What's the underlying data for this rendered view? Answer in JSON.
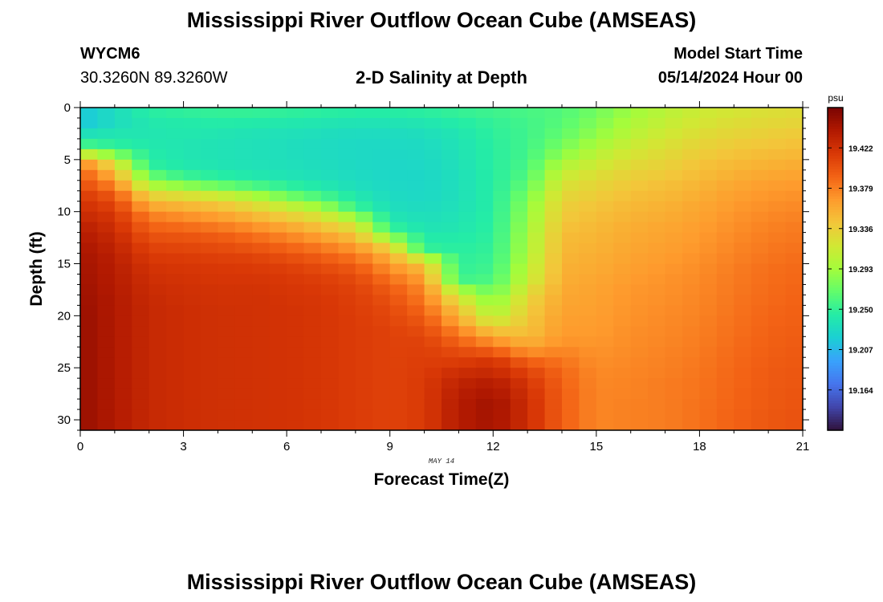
{
  "header": {
    "title": "Mississippi River Outflow Ocean Cube (AMSEAS)",
    "station": "WYCM6",
    "coords": "30.3260N  89.3260W",
    "subtitle": "2-D Salinity at Depth",
    "model_start_label": "Model Start Time",
    "model_start_value": "05/14/2024 Hour 00"
  },
  "footer": {
    "title": "Mississippi River Outflow Ocean Cube (AMSEAS)"
  },
  "chart_data": {
    "type": "heatmap",
    "title": "2-D Salinity at Depth",
    "xlabel": "Forecast Time(Z)",
    "ylabel": "Depth (ft)",
    "date_label": "MAY 14",
    "xlim": [
      0,
      21
    ],
    "ylim": [
      0,
      31
    ],
    "y_inverted": true,
    "xticks": [
      0,
      3,
      6,
      9,
      12,
      15,
      18,
      21
    ],
    "yticks": [
      0,
      5,
      10,
      15,
      20,
      25,
      30
    ],
    "colorbar": {
      "unit": "psu",
      "range": [
        19.121,
        19.465
      ],
      "ticks": [
        19.164,
        19.207,
        19.25,
        19.293,
        19.336,
        19.379,
        19.422
      ],
      "colors": [
        "#30123b",
        "#4145ab",
        "#4675ed",
        "#39a2fc",
        "#1bcfd4",
        "#24eca6",
        "#61fc6c",
        "#a4fc3b",
        "#d1e834",
        "#f3c63a",
        "#fe9b2d",
        "#f36315",
        "#d93806",
        "#b11901",
        "#7a0402"
      ]
    },
    "profiles": [
      {
        "time": 0,
        "values": [
          19.215,
          19.215,
          19.232,
          19.255,
          19.318,
          19.378,
          19.395,
          19.405,
          19.415,
          19.422,
          19.428,
          19.436,
          19.44,
          19.444,
          19.446,
          19.447,
          19.448,
          19.449,
          19.45,
          19.451,
          19.452,
          19.452,
          19.452,
          19.452,
          19.452,
          19.452,
          19.452,
          19.452,
          19.452,
          19.452,
          19.452
        ]
      },
      {
        "time": 1,
        "values": [
          19.23,
          19.23,
          19.238,
          19.247,
          19.282,
          19.328,
          19.355,
          19.378,
          19.398,
          19.41,
          19.418,
          19.423,
          19.428,
          19.432,
          19.435,
          19.437,
          19.438,
          19.439,
          19.44,
          19.44,
          19.44,
          19.44,
          19.44,
          19.44,
          19.44,
          19.44,
          19.44,
          19.44,
          19.44,
          19.44,
          19.44
        ]
      },
      {
        "time": 2,
        "values": [
          19.245,
          19.24,
          19.238,
          19.24,
          19.243,
          19.248,
          19.27,
          19.3,
          19.335,
          19.36,
          19.38,
          19.392,
          19.402,
          19.41,
          19.416,
          19.42,
          19.423,
          19.425,
          19.427,
          19.428,
          19.428,
          19.428,
          19.428,
          19.428,
          19.428,
          19.428,
          19.428,
          19.428,
          19.428,
          19.428,
          19.428
        ]
      },
      {
        "time": 3,
        "values": [
          19.248,
          19.242,
          19.24,
          19.238,
          19.238,
          19.24,
          19.252,
          19.285,
          19.325,
          19.352,
          19.372,
          19.388,
          19.4,
          19.408,
          19.414,
          19.418,
          19.42,
          19.422,
          19.423,
          19.424,
          19.424,
          19.424,
          19.424,
          19.424,
          19.424,
          19.424,
          19.424,
          19.424,
          19.424,
          19.424,
          19.424
        ]
      },
      {
        "time": 4,
        "values": [
          19.25,
          19.243,
          19.238,
          19.236,
          19.236,
          19.237,
          19.245,
          19.272,
          19.315,
          19.345,
          19.365,
          19.382,
          19.396,
          19.405,
          19.412,
          19.416,
          19.418,
          19.42,
          19.421,
          19.422,
          19.422,
          19.422,
          19.422,
          19.422,
          19.422,
          19.422,
          19.422,
          19.422,
          19.422,
          19.422,
          19.422
        ]
      },
      {
        "time": 5,
        "values": [
          19.25,
          19.242,
          19.236,
          19.234,
          19.234,
          19.235,
          19.24,
          19.26,
          19.298,
          19.33,
          19.352,
          19.372,
          19.388,
          19.4,
          19.41,
          19.415,
          19.418,
          19.42,
          19.421,
          19.421,
          19.421,
          19.421,
          19.421,
          19.421,
          19.421,
          19.421,
          19.421,
          19.421,
          19.421,
          19.421,
          19.421
        ]
      },
      {
        "time": 6,
        "values": [
          19.248,
          19.24,
          19.234,
          19.232,
          19.232,
          19.233,
          19.236,
          19.248,
          19.275,
          19.31,
          19.338,
          19.36,
          19.378,
          19.392,
          19.404,
          19.412,
          19.416,
          19.418,
          19.419,
          19.42,
          19.42,
          19.42,
          19.42,
          19.42,
          19.42,
          19.42,
          19.42,
          19.42,
          19.42,
          19.42,
          19.42
        ]
      },
      {
        "time": 7,
        "values": [
          19.246,
          19.238,
          19.232,
          19.23,
          19.23,
          19.231,
          19.233,
          19.24,
          19.258,
          19.29,
          19.322,
          19.345,
          19.365,
          19.382,
          19.396,
          19.406,
          19.412,
          19.415,
          19.417,
          19.418,
          19.418,
          19.418,
          19.418,
          19.418,
          19.418,
          19.418,
          19.418,
          19.418,
          19.418,
          19.418,
          19.418
        ]
      },
      {
        "time": 8,
        "values": [
          19.244,
          19.236,
          19.23,
          19.228,
          19.228,
          19.228,
          19.229,
          19.232,
          19.24,
          19.252,
          19.29,
          19.325,
          19.348,
          19.368,
          19.385,
          19.398,
          19.406,
          19.41,
          19.412,
          19.413,
          19.414,
          19.414,
          19.414,
          19.414,
          19.414,
          19.414,
          19.414,
          19.414,
          19.414,
          19.414,
          19.414
        ]
      },
      {
        "time": 9,
        "values": [
          19.244,
          19.236,
          19.23,
          19.228,
          19.227,
          19.226,
          19.226,
          19.227,
          19.229,
          19.232,
          19.238,
          19.25,
          19.29,
          19.335,
          19.358,
          19.372,
          19.385,
          19.396,
          19.402,
          19.406,
          19.408,
          19.41,
          19.41,
          19.41,
          19.41,
          19.41,
          19.41,
          19.41,
          19.41,
          19.41,
          19.41
        ]
      },
      {
        "time": 10,
        "values": [
          19.246,
          19.238,
          19.232,
          19.229,
          19.228,
          19.227,
          19.226,
          19.226,
          19.227,
          19.229,
          19.232,
          19.236,
          19.242,
          19.25,
          19.31,
          19.35,
          19.365,
          19.375,
          19.382,
          19.39,
          19.398,
          19.405,
          19.41,
          19.412,
          19.413,
          19.414,
          19.415,
          19.415,
          19.415,
          19.415,
          19.415
        ]
      },
      {
        "time": 11,
        "values": [
          19.25,
          19.243,
          19.238,
          19.236,
          19.235,
          19.234,
          19.233,
          19.233,
          19.233,
          19.234,
          19.236,
          19.238,
          19.242,
          19.245,
          19.248,
          19.25,
          19.255,
          19.295,
          19.325,
          19.345,
          19.36,
          19.378,
          19.392,
          19.405,
          19.414,
          19.425,
          19.432,
          19.436,
          19.438,
          19.438,
          19.438
        ]
      },
      {
        "time": 12,
        "values": [
          19.254,
          19.25,
          19.248,
          19.247,
          19.246,
          19.246,
          19.245,
          19.245,
          19.245,
          19.245,
          19.246,
          19.247,
          19.248,
          19.25,
          19.252,
          19.255,
          19.26,
          19.27,
          19.282,
          19.295,
          19.315,
          19.345,
          19.372,
          19.398,
          19.42,
          19.428,
          19.438,
          19.443,
          19.448,
          19.447,
          19.446
        ]
      },
      {
        "time": 13,
        "values": [
          19.258,
          19.256,
          19.255,
          19.255,
          19.256,
          19.258,
          19.262,
          19.268,
          19.276,
          19.282,
          19.286,
          19.29,
          19.294,
          19.296,
          19.3,
          19.305,
          19.31,
          19.322,
          19.332,
          19.338,
          19.342,
          19.345,
          19.354,
          19.372,
          19.395,
          19.41,
          19.418,
          19.422,
          19.424,
          19.424,
          19.424
        ]
      },
      {
        "time": 14,
        "values": [
          19.262,
          19.264,
          19.268,
          19.275,
          19.285,
          19.3,
          19.312,
          19.322,
          19.33,
          19.336,
          19.34,
          19.344,
          19.348,
          19.35,
          19.352,
          19.354,
          19.356,
          19.358,
          19.36,
          19.362,
          19.364,
          19.366,
          19.37,
          19.378,
          19.385,
          19.39,
          19.392,
          19.394,
          19.394,
          19.394,
          19.394
        ]
      },
      {
        "time": 15,
        "values": [
          19.275,
          19.28,
          19.286,
          19.295,
          19.305,
          19.315,
          19.325,
          19.332,
          19.338,
          19.343,
          19.347,
          19.35,
          19.352,
          19.354,
          19.356,
          19.358,
          19.36,
          19.362,
          19.363,
          19.364,
          19.365,
          19.366,
          19.368,
          19.37,
          19.372,
          19.374,
          19.375,
          19.376,
          19.376,
          19.376,
          19.376
        ]
      },
      {
        "time": 16,
        "values": [
          19.292,
          19.298,
          19.304,
          19.312,
          19.32,
          19.328,
          19.335,
          19.341,
          19.346,
          19.35,
          19.353,
          19.356,
          19.358,
          19.36,
          19.362,
          19.364,
          19.366,
          19.368,
          19.369,
          19.37,
          19.371,
          19.372,
          19.373,
          19.374,
          19.375,
          19.376,
          19.377,
          19.377,
          19.378,
          19.378,
          19.378
        ]
      },
      {
        "time": 17,
        "values": [
          19.305,
          19.31,
          19.316,
          19.322,
          19.328,
          19.334,
          19.34,
          19.346,
          19.35,
          19.354,
          19.357,
          19.36,
          19.362,
          19.364,
          19.366,
          19.368,
          19.37,
          19.371,
          19.372,
          19.373,
          19.374,
          19.375,
          19.376,
          19.377,
          19.378,
          19.379,
          19.38,
          19.38,
          19.38,
          19.38,
          19.38
        ]
      },
      {
        "time": 18,
        "values": [
          19.315,
          19.32,
          19.326,
          19.332,
          19.338,
          19.344,
          19.348,
          19.352,
          19.356,
          19.36,
          19.362,
          19.365,
          19.367,
          19.369,
          19.371,
          19.373,
          19.374,
          19.375,
          19.376,
          19.377,
          19.378,
          19.379,
          19.38,
          19.381,
          19.382,
          19.383,
          19.384,
          19.384,
          19.385,
          19.385,
          19.385
        ]
      },
      {
        "time": 19,
        "values": [
          19.32,
          19.326,
          19.332,
          19.338,
          19.344,
          19.35,
          19.355,
          19.36,
          19.364,
          19.367,
          19.37,
          19.372,
          19.374,
          19.376,
          19.378,
          19.38,
          19.381,
          19.382,
          19.383,
          19.384,
          19.385,
          19.386,
          19.387,
          19.388,
          19.389,
          19.39,
          19.39,
          19.391,
          19.391,
          19.392,
          19.392
        ]
      },
      {
        "time": 20,
        "values": [
          19.325,
          19.33,
          19.336,
          19.342,
          19.348,
          19.354,
          19.36,
          19.365,
          19.369,
          19.372,
          19.375,
          19.378,
          19.38,
          19.382,
          19.384,
          19.386,
          19.387,
          19.388,
          19.389,
          19.39,
          19.391,
          19.392,
          19.393,
          19.394,
          19.395,
          19.396,
          19.396,
          19.397,
          19.397,
          19.398,
          19.398
        ]
      },
      {
        "time": 21,
        "values": [
          19.328,
          19.333,
          19.339,
          19.345,
          19.351,
          19.357,
          19.362,
          19.367,
          19.371,
          19.375,
          19.378,
          19.381,
          19.383,
          19.385,
          19.387,
          19.389,
          19.39,
          19.391,
          19.392,
          19.393,
          19.394,
          19.395,
          19.396,
          19.397,
          19.398,
          19.399,
          19.399,
          19.4,
          19.4,
          19.401,
          19.401
        ]
      }
    ]
  }
}
